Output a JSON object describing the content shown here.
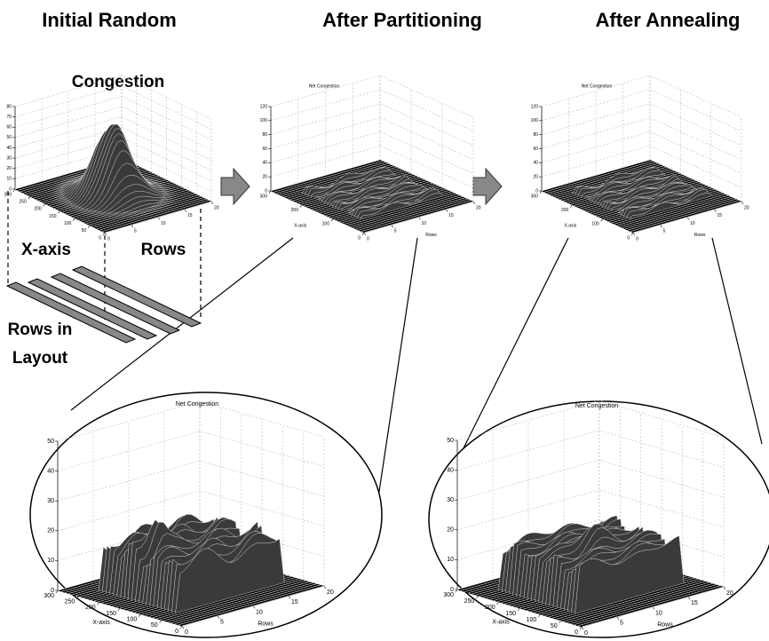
{
  "headings": [
    "Initial Random",
    "After Partitioning",
    "After Annealing"
  ],
  "annotations": {
    "congestion": "Congestion",
    "x_axis": "X-axis",
    "rows": "Rows",
    "rows_in_layout": [
      "Rows in",
      "Layout"
    ]
  },
  "plots": [
    {
      "zticks": [
        0,
        10,
        20,
        30,
        40,
        50,
        60,
        70,
        80
      ],
      "xticks": [
        0,
        50,
        100,
        150,
        200,
        250,
        300
      ],
      "rowticks": [
        0,
        5,
        10,
        15,
        20
      ]
    },
    {
      "title": "Net Congestion",
      "zticks": [
        0,
        20,
        40,
        60,
        80,
        100,
        120
      ],
      "xticks": [
        0,
        100,
        200,
        300
      ],
      "rowticks": [
        0,
        5,
        10,
        15,
        20
      ],
      "xlabel": "X-axis",
      "rowlabel": "Rows"
    },
    {
      "title": "Net Congestion",
      "zticks": [
        0,
        20,
        40,
        60,
        80,
        100,
        120
      ],
      "xticks": [
        0,
        100,
        200,
        300
      ],
      "rowticks": [
        0,
        5,
        10,
        15,
        20
      ],
      "xlabel": "X-axis",
      "rowlabel": "Rows"
    },
    {
      "title": "Net Congestion",
      "zticks": [
        0,
        10,
        20,
        30,
        40,
        50
      ],
      "xticks": [
        0,
        50,
        100,
        150,
        200,
        250,
        300
      ],
      "rowticks": [
        0,
        5,
        10,
        15,
        20
      ],
      "xlabel": "X-axis",
      "rowlabel": "Rows"
    },
    {
      "title": "Net Congestion",
      "zticks": [
        0,
        10,
        20,
        30,
        40,
        50
      ],
      "xticks": [
        0,
        50,
        100,
        150,
        200,
        250,
        300
      ],
      "rowticks": [
        0,
        5,
        10,
        15,
        20
      ],
      "xlabel": "X-axis",
      "rowlabel": "Rows"
    }
  ]
}
